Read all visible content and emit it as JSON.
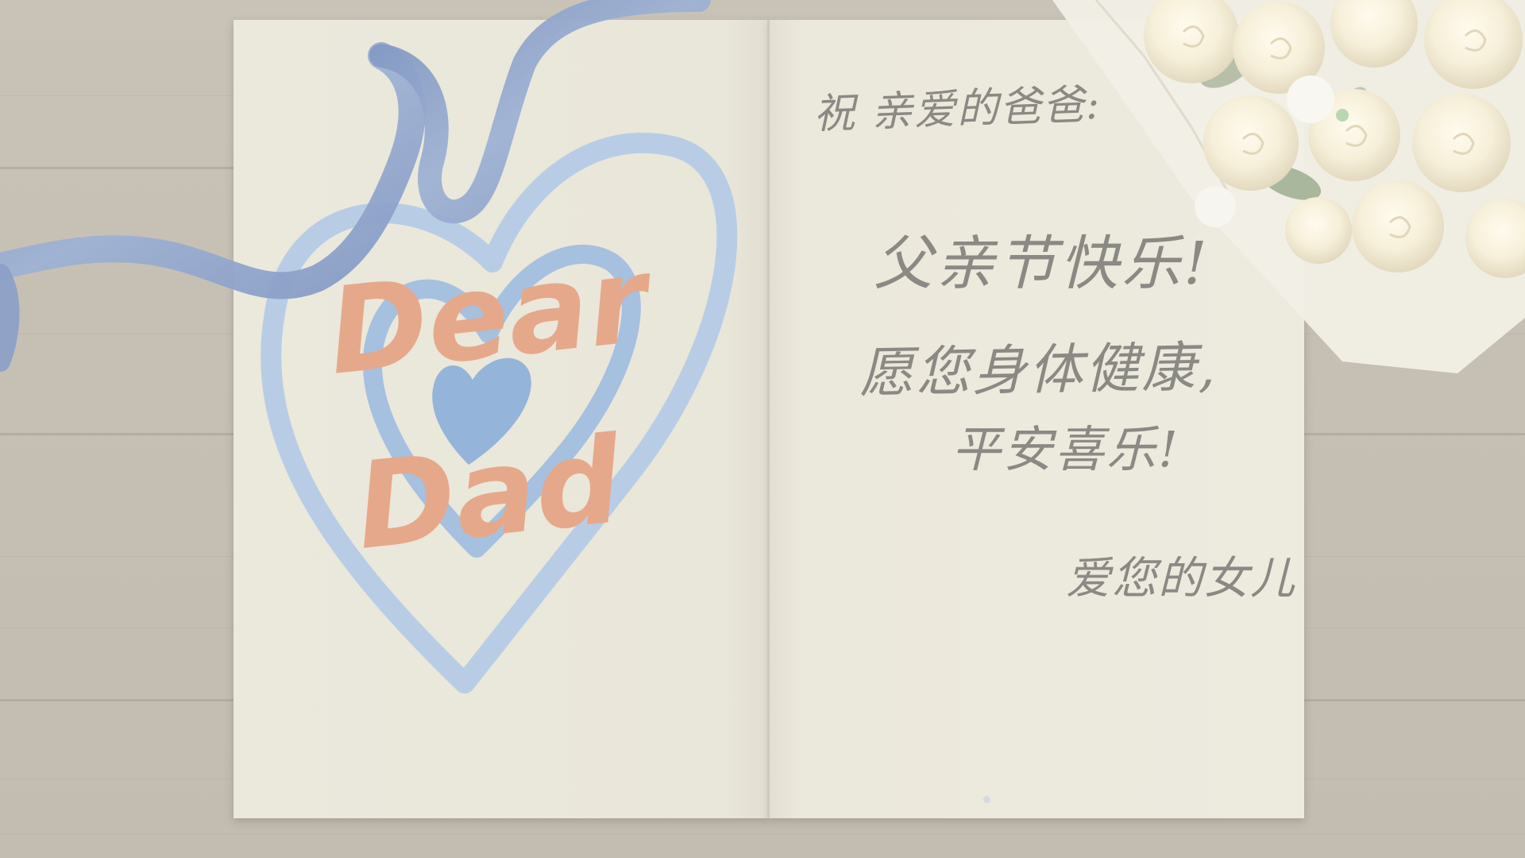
{
  "scene": {
    "background_color": "#c6c0b4",
    "card_color": "#ebe8dc",
    "ribbon_color": "#8fa4c8",
    "heart_color": "#a9c4e3",
    "lettering_color": "#e6a88b",
    "handwriting_color": "#8a8984"
  },
  "card_front": {
    "title_line_1": "Dear",
    "title_line_2": "Dad",
    "decoration": "heart-icon"
  },
  "card_inside": {
    "greeting": "祝 亲爱的爸爸:",
    "wish_line_1": "父亲节快乐!",
    "wish_line_2": "愿您身体健康,",
    "wish_line_3": "平安喜乐!",
    "signature": "爱您的女儿"
  },
  "decorations": {
    "ribbon": "ribbon-icon",
    "bouquet": "rose-bouquet-icon"
  }
}
